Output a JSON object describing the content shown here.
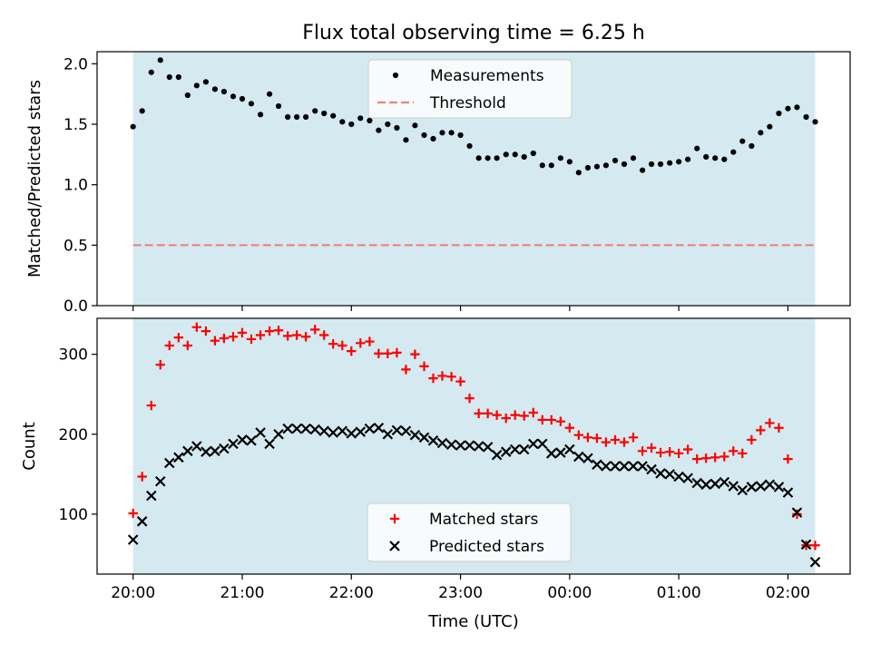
{
  "chart_data": {
    "title": "Flux total observing time = 6.25 h",
    "xlabel": "Time (UTC)",
    "x_ticks": [
      "20:00",
      "21:00",
      "22:00",
      "23:00",
      "00:00",
      "01:00",
      "02:00"
    ],
    "x_tick_hours": [
      0,
      1,
      2,
      3,
      4,
      5,
      6
    ],
    "xlim_hours": [
      -0.33,
      6.57
    ],
    "shaded_span_hours": [
      0,
      6.25
    ],
    "colors": {
      "shade": "#d4eaf0",
      "measurements": "#000000",
      "threshold": "#f08080",
      "matched": "#ff0000",
      "predicted": "#000000"
    },
    "panels": [
      {
        "type": "scatter",
        "ylabel": "Matched/Predicted stars",
        "ylim": [
          0,
          2.1
        ],
        "y_ticks": [
          0.0,
          0.5,
          1.0,
          1.5,
          2.0
        ],
        "y_tick_labels": [
          "0.0",
          "0.5",
          "1.0",
          "1.5",
          "2.0"
        ],
        "legend_position": "top-center",
        "series": [
          {
            "name": "Measurements",
            "marker": "dot",
            "x": [
              0,
              0.083,
              0.167,
              0.25,
              0.333,
              0.417,
              0.5,
              0.583,
              0.667,
              0.75,
              0.833,
              0.917,
              1.0,
              1.083,
              1.167,
              1.25,
              1.333,
              1.417,
              1.5,
              1.583,
              1.667,
              1.75,
              1.833,
              1.917,
              2.0,
              2.083,
              2.167,
              2.25,
              2.333,
              2.417,
              2.5,
              2.583,
              2.667,
              2.75,
              2.833,
              2.917,
              3.0,
              3.083,
              3.167,
              3.25,
              3.333,
              3.417,
              3.5,
              3.583,
              3.667,
              3.75,
              3.833,
              3.917,
              4.0,
              4.083,
              4.167,
              4.25,
              4.333,
              4.417,
              4.5,
              4.583,
              4.667,
              4.75,
              4.833,
              4.917,
              5.0,
              5.083,
              5.167,
              5.25,
              5.333,
              5.417,
              5.5,
              5.583,
              5.667,
              5.75,
              5.833,
              5.917,
              6.0,
              6.083,
              6.167,
              6.25
            ],
            "y": [
              1.48,
              1.61,
              1.93,
              2.03,
              1.89,
              1.89,
              1.74,
              1.82,
              1.85,
              1.79,
              1.77,
              1.73,
              1.71,
              1.67,
              1.58,
              1.75,
              1.65,
              1.56,
              1.56,
              1.56,
              1.61,
              1.59,
              1.57,
              1.52,
              1.5,
              1.55,
              1.53,
              1.45,
              1.5,
              1.47,
              1.37,
              1.49,
              1.41,
              1.38,
              1.43,
              1.43,
              1.41,
              1.32,
              1.22,
              1.22,
              1.22,
              1.25,
              1.25,
              1.23,
              1.26,
              1.16,
              1.16,
              1.22,
              1.19,
              1.1,
              1.14,
              1.15,
              1.16,
              1.2,
              1.17,
              1.22,
              1.12,
              1.17,
              1.17,
              1.18,
              1.19,
              1.21,
              1.3,
              1.23,
              1.22,
              1.21,
              1.27,
              1.36,
              1.32,
              1.43,
              1.48,
              1.59,
              1.63,
              1.64,
              1.56,
              1.52
            ]
          },
          {
            "name": "Threshold",
            "marker": "dashed-line",
            "x": [
              0,
              6.25
            ],
            "y": [
              0.5,
              0.5
            ]
          }
        ]
      },
      {
        "type": "scatter",
        "ylabel": "Count",
        "ylim": [
          25,
          345
        ],
        "y_ticks": [
          100,
          200,
          300
        ],
        "y_tick_labels": [
          "100",
          "200",
          "300"
        ],
        "legend_position": "bottom-center",
        "series": [
          {
            "name": "Matched stars",
            "marker": "plus",
            "x": [
              0,
              0.083,
              0.167,
              0.25,
              0.333,
              0.417,
              0.5,
              0.583,
              0.667,
              0.75,
              0.833,
              0.917,
              1.0,
              1.083,
              1.167,
              1.25,
              1.333,
              1.417,
              1.5,
              1.583,
              1.667,
              1.75,
              1.833,
              1.917,
              2.0,
              2.083,
              2.167,
              2.25,
              2.333,
              2.417,
              2.5,
              2.583,
              2.667,
              2.75,
              2.833,
              2.917,
              3.0,
              3.083,
              3.167,
              3.25,
              3.333,
              3.417,
              3.5,
              3.583,
              3.667,
              3.75,
              3.833,
              3.917,
              4.0,
              4.083,
              4.167,
              4.25,
              4.333,
              4.417,
              4.5,
              4.583,
              4.667,
              4.75,
              4.833,
              4.917,
              5.0,
              5.083,
              5.167,
              5.25,
              5.333,
              5.417,
              5.5,
              5.583,
              5.667,
              5.75,
              5.833,
              5.917,
              6.0,
              6.083,
              6.167,
              6.25
            ],
            "y": [
              101,
              147,
              236,
              287,
              311,
              321,
              311,
              334,
              329,
              317,
              320,
              322,
              327,
              319,
              324,
              329,
              330,
              323,
              324,
              322,
              331,
              324,
              313,
              311,
              304,
              314,
              316,
              301,
              301,
              302,
              281,
              300,
              285,
              270,
              273,
              272,
              266,
              245,
              226,
              226,
              224,
              220,
              224,
              223,
              227,
              218,
              218,
              216,
              208,
              199,
              196,
              195,
              190,
              193,
              190,
              196,
              179,
              183,
              177,
              178,
              176,
              181,
              169,
              170,
              171,
              172,
              179,
              176,
              193,
              205,
              214,
              208,
              169,
              100,
              61,
              61
            ]
          },
          {
            "name": "Predicted stars",
            "marker": "x",
            "x": [
              0,
              0.083,
              0.167,
              0.25,
              0.333,
              0.417,
              0.5,
              0.583,
              0.667,
              0.75,
              0.833,
              0.917,
              1.0,
              1.083,
              1.167,
              1.25,
              1.333,
              1.417,
              1.5,
              1.583,
              1.667,
              1.75,
              1.833,
              1.917,
              2.0,
              2.083,
              2.167,
              2.25,
              2.333,
              2.417,
              2.5,
              2.583,
              2.667,
              2.75,
              2.833,
              2.917,
              3.0,
              3.083,
              3.167,
              3.25,
              3.333,
              3.417,
              3.5,
              3.583,
              3.667,
              3.75,
              3.833,
              3.917,
              4.0,
              4.083,
              4.167,
              4.25,
              4.333,
              4.417,
              4.5,
              4.583,
              4.667,
              4.75,
              4.833,
              4.917,
              5.0,
              5.083,
              5.167,
              5.25,
              5.333,
              5.417,
              5.5,
              5.583,
              5.667,
              5.75,
              5.833,
              5.917,
              6.0,
              6.083,
              6.167,
              6.25
            ],
            "y": [
              68,
              91,
              123,
              141,
              164,
              171,
              179,
              185,
              178,
              179,
              182,
              188,
              193,
              192,
              202,
              188,
              200,
              207,
              207,
              207,
              206,
              204,
              202,
              204,
              201,
              203,
              207,
              208,
              200,
              205,
              204,
              199,
              196,
              192,
              189,
              187,
              186,
              186,
              185,
              184,
              174,
              178,
              181,
              181,
              188,
              188,
              176,
              177,
              181,
              172,
              170,
              162,
              160,
              160,
              160,
              160,
              160,
              156,
              151,
              150,
              147,
              145,
              139,
              137,
              138,
              140,
              135,
              130,
              134,
              135,
              137,
              134,
              127,
              102,
              62,
              40
            ]
          }
        ]
      }
    ]
  }
}
